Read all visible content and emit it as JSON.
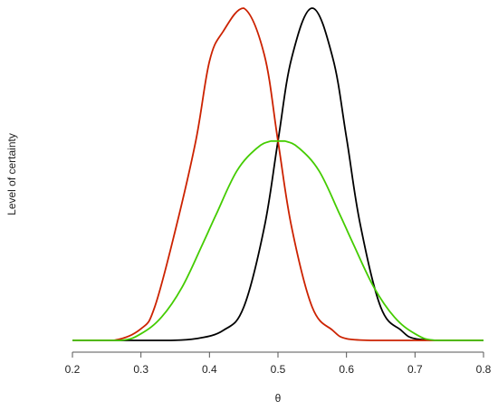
{
  "chart_data": {
    "type": "line",
    "xlabel": "θ",
    "ylabel": "Level of certainty",
    "xlim": [
      0.2,
      0.8
    ],
    "ylim": [
      0,
      1
    ],
    "x_ticks": [
      "0.2",
      "0.3",
      "0.4",
      "0.5",
      "0.6",
      "0.7",
      "0.8"
    ],
    "grid": false,
    "legend": "none",
    "series": [
      {
        "color": "#000000",
        "x": [
          0.2,
          0.26,
          0.3,
          0.34,
          0.38,
          0.42,
          0.45,
          0.48,
          0.5,
          0.52,
          0.55,
          0.58,
          0.6,
          0.62,
          0.65,
          0.68,
          0.7,
          0.74,
          0.8
        ],
        "y": [
          0.0,
          0.0,
          0.0,
          0.0,
          0.005,
          0.03,
          0.1,
          0.34,
          0.6,
          0.85,
          1.0,
          0.85,
          0.61,
          0.35,
          0.1,
          0.03,
          0.005,
          0.0,
          0.0
        ]
      },
      {
        "color": "#cc2200",
        "x": [
          0.2,
          0.26,
          0.3,
          0.32,
          0.35,
          0.38,
          0.4,
          0.42,
          0.45,
          0.48,
          0.5,
          0.52,
          0.55,
          0.58,
          0.6,
          0.64,
          0.7,
          0.8
        ],
        "y": [
          0.0,
          0.0,
          0.035,
          0.1,
          0.33,
          0.6,
          0.84,
          0.93,
          1.0,
          0.86,
          0.6,
          0.34,
          0.1,
          0.03,
          0.005,
          0.0,
          0.0,
          0.0
        ]
      },
      {
        "color": "#44cc00",
        "x": [
          0.2,
          0.27,
          0.3,
          0.33,
          0.36,
          0.39,
          0.41,
          0.44,
          0.47,
          0.49,
          0.5,
          0.51,
          0.53,
          0.56,
          0.59,
          0.61,
          0.64,
          0.67,
          0.7,
          0.73,
          0.8
        ],
        "y": [
          0.0,
          0.0,
          0.02,
          0.07,
          0.16,
          0.29,
          0.38,
          0.51,
          0.58,
          0.6,
          0.6,
          0.6,
          0.58,
          0.51,
          0.38,
          0.29,
          0.16,
          0.07,
          0.02,
          0.0,
          0.0
        ]
      }
    ]
  }
}
